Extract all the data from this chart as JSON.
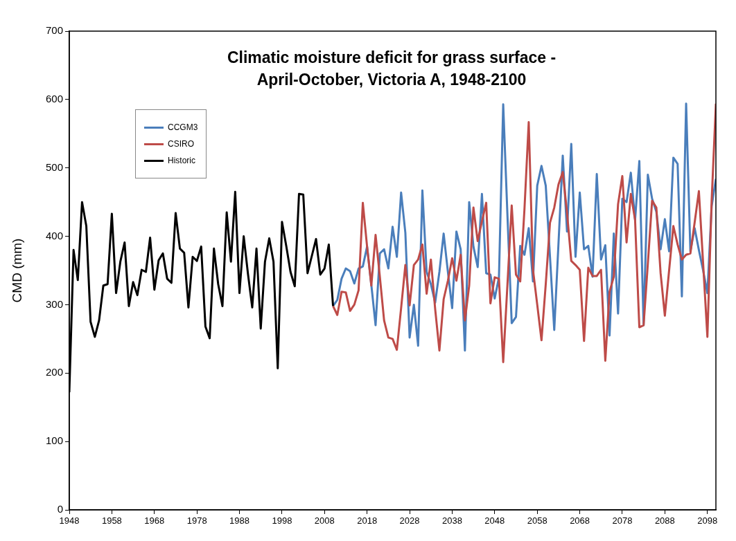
{
  "chart_data": {
    "type": "line",
    "title": "Climatic moisture deficit for grass surface -\nApril-October, Victoria A, 1948-2100",
    "ylabel": "CMD (mm)",
    "x": [
      1948,
      1949,
      1950,
      1951,
      1952,
      1953,
      1954,
      1955,
      1956,
      1957,
      1958,
      1959,
      1960,
      1961,
      1962,
      1963,
      1964,
      1965,
      1966,
      1967,
      1968,
      1969,
      1970,
      1971,
      1972,
      1973,
      1974,
      1975,
      1976,
      1977,
      1978,
      1979,
      1980,
      1981,
      1982,
      1983,
      1984,
      1985,
      1986,
      1987,
      1988,
      1989,
      1990,
      1991,
      1992,
      1993,
      1994,
      1995,
      1996,
      1997,
      1998,
      1999,
      2000,
      2001,
      2002,
      2003,
      2004,
      2005,
      2006,
      2007,
      2008,
      2009,
      2010,
      2011,
      2012,
      2013,
      2014,
      2015,
      2016,
      2017,
      2018,
      2019,
      2020,
      2021,
      2022,
      2023,
      2024,
      2025,
      2026,
      2027,
      2028,
      2029,
      2030,
      2031,
      2032,
      2033,
      2034,
      2035,
      2036,
      2037,
      2038,
      2039,
      2040,
      2041,
      2042,
      2043,
      2044,
      2045,
      2046,
      2047,
      2048,
      2049,
      2050,
      2051,
      2052,
      2053,
      2054,
      2055,
      2056,
      2057,
      2058,
      2059,
      2060,
      2061,
      2062,
      2063,
      2064,
      2065,
      2066,
      2067,
      2068,
      2069,
      2070,
      2071,
      2072,
      2073,
      2074,
      2075,
      2076,
      2077,
      2078,
      2079,
      2080,
      2081,
      2082,
      2083,
      2084,
      2085,
      2086,
      2087,
      2088,
      2089,
      2090,
      2091,
      2092,
      2093,
      2094,
      2095,
      2096,
      2097,
      2098,
      2099,
      2100
    ],
    "series": [
      {
        "name": "CCGM3",
        "color": "#4a7ebb",
        "values": [
          null,
          null,
          null,
          null,
          null,
          null,
          null,
          null,
          null,
          null,
          null,
          null,
          null,
          null,
          null,
          null,
          null,
          null,
          null,
          null,
          null,
          null,
          null,
          null,
          null,
          null,
          null,
          null,
          null,
          null,
          null,
          null,
          null,
          null,
          null,
          null,
          null,
          null,
          null,
          null,
          null,
          null,
          null,
          null,
          null,
          null,
          null,
          null,
          null,
          null,
          null,
          null,
          null,
          null,
          null,
          null,
          null,
          null,
          null,
          null,
          null,
          null,
          298,
          307,
          338,
          353,
          349,
          331,
          353,
          356,
          385,
          329,
          270,
          375,
          381,
          353,
          414,
          370,
          464,
          405,
          252,
          300,
          240,
          467,
          348,
          330,
          303,
          348,
          404,
          348,
          295,
          407,
          381,
          233,
          450,
          385,
          355,
          462,
          346,
          344,
          309,
          340,
          593,
          430,
          273,
          282,
          386,
          373,
          412,
          334,
          474,
          503,
          474,
          370,
          263,
          390,
          518,
          407,
          535,
          370,
          464,
          381,
          386,
          341,
          491,
          366,
          387,
          255,
          404,
          287,
          455,
          450,
          493,
          424,
          510,
          270,
          490,
          455,
          436,
          381,
          425,
          378,
          515,
          506,
          312,
          594,
          378,
          412,
          380,
          350,
          317,
          444,
          484
        ]
      },
      {
        "name": "CSIRO",
        "color": "#be4b48",
        "values": [
          null,
          null,
          null,
          null,
          null,
          null,
          null,
          null,
          null,
          null,
          null,
          null,
          null,
          null,
          null,
          null,
          null,
          null,
          null,
          null,
          null,
          null,
          null,
          null,
          null,
          null,
          null,
          null,
          null,
          null,
          null,
          null,
          null,
          null,
          null,
          null,
          null,
          null,
          null,
          null,
          null,
          null,
          null,
          null,
          null,
          null,
          null,
          null,
          null,
          null,
          null,
          null,
          null,
          null,
          null,
          null,
          null,
          null,
          null,
          null,
          null,
          null,
          298,
          285,
          319,
          318,
          291,
          300,
          321,
          449,
          385,
          328,
          402,
          341,
          277,
          252,
          250,
          234,
          295,
          358,
          299,
          358,
          366,
          388,
          316,
          366,
          294,
          233,
          308,
          335,
          368,
          335,
          373,
          277,
          328,
          442,
          393,
          422,
          449,
          302,
          340,
          338,
          216,
          330,
          445,
          344,
          334,
          440,
          567,
          351,
          300,
          248,
          330,
          420,
          442,
          476,
          494,
          435,
          364,
          358,
          351,
          247,
          354,
          342,
          342,
          351,
          218,
          319,
          341,
          447,
          488,
          391,
          462,
          424,
          267,
          270,
          360,
          452,
          442,
          346,
          284,
          350,
          415,
          388,
          366,
          373,
          375,
          420,
          466,
          360,
          253,
          452,
          594
        ]
      },
      {
        "name": "Historic",
        "color": "#000000",
        "values": [
          172,
          380,
          336,
          450,
          415,
          275,
          253,
          277,
          328,
          330,
          433,
          317,
          363,
          391,
          298,
          333,
          314,
          351,
          348,
          398,
          322,
          365,
          375,
          338,
          332,
          434,
          382,
          376,
          296,
          370,
          364,
          385,
          268,
          251,
          382,
          330,
          298,
          435,
          363,
          465,
          317,
          400,
          345,
          296,
          382,
          265,
          363,
          397,
          363,
          207,
          421,
          386,
          348,
          327,
          462,
          461,
          346,
          371,
          396,
          344,
          353,
          388,
          298,
          null,
          null,
          null,
          null,
          null,
          null,
          null,
          null,
          null,
          null,
          null,
          null,
          null,
          null,
          null,
          null,
          null,
          null,
          null,
          null,
          null,
          null,
          null,
          null,
          null,
          null,
          null,
          null,
          null,
          null,
          null,
          null,
          null,
          null,
          null,
          null,
          null,
          null,
          null,
          null,
          null,
          null,
          null,
          null,
          null,
          null,
          null,
          null,
          null,
          null,
          null,
          null,
          null,
          null,
          null,
          null,
          null,
          null,
          null,
          null,
          null,
          null,
          null,
          null,
          null,
          null,
          null,
          null,
          null,
          null,
          null,
          null,
          null,
          null,
          null,
          null,
          null,
          null,
          null,
          null,
          null,
          null,
          null,
          null,
          null,
          null,
          null,
          null,
          null,
          null
        ]
      }
    ],
    "xlim": [
      1948,
      2100
    ],
    "xticks": [
      1948,
      1958,
      1968,
      1978,
      1988,
      1998,
      2008,
      2018,
      2028,
      2038,
      2048,
      2058,
      2068,
      2078,
      2088,
      2098
    ],
    "ylim": [
      0,
      700
    ],
    "yticks": [
      0,
      100,
      200,
      300,
      400,
      500,
      600,
      700
    ],
    "grid": false,
    "legend": "top left",
    "marker": "none",
    "line_style": "solid"
  }
}
